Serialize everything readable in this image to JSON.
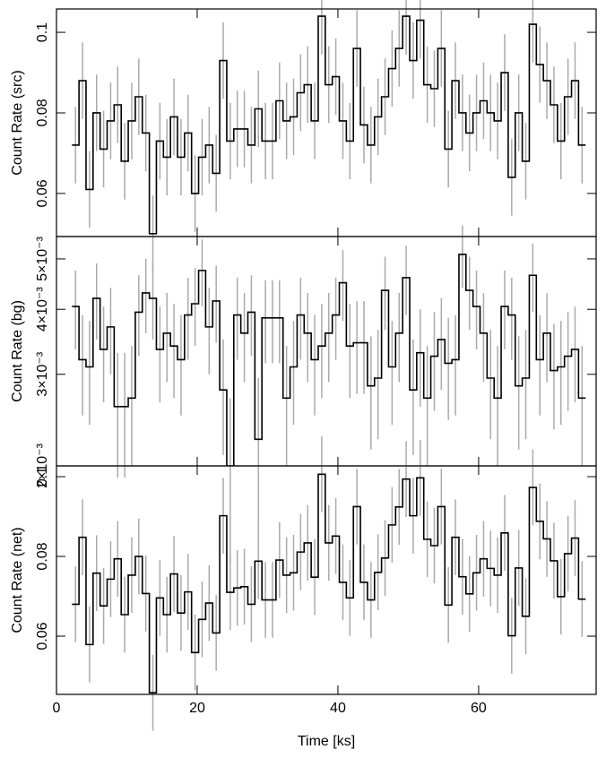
{
  "chart_data": [
    {
      "type": "step",
      "ylabel": "Count Rate (src)",
      "xlim": [
        0,
        76.7
      ],
      "ylim": [
        0.0493,
        0.1058
      ],
      "yticks": [
        0.06,
        0.08,
        0.1
      ],
      "xticks": [
        0,
        20,
        40,
        60
      ],
      "color": "#000000",
      "error_color": "#aaaaaa",
      "x": [
        2.7,
        3.7,
        4.7,
        5.7,
        6.7,
        7.7,
        8.7,
        9.7,
        10.7,
        11.7,
        12.7,
        13.7,
        14.7,
        15.7,
        16.7,
        17.7,
        18.7,
        19.7,
        20.7,
        21.7,
        22.7,
        23.7,
        24.7,
        25.7,
        26.7,
        27.7,
        28.7,
        29.7,
        30.7,
        31.7,
        32.7,
        33.7,
        34.7,
        35.7,
        36.7,
        37.7,
        38.7,
        39.7,
        40.7,
        41.7,
        42.7,
        43.7,
        44.7,
        45.7,
        46.7,
        47.7,
        48.7,
        49.7,
        50.7,
        51.7,
        52.7,
        53.7,
        54.7,
        55.7,
        56.7,
        57.7,
        58.7,
        59.7,
        60.7,
        61.7,
        62.7,
        63.7,
        64.7,
        65.7,
        66.7,
        67.7,
        68.7,
        69.7,
        70.7,
        71.7,
        72.7,
        73.7,
        74.7
      ],
      "values": [
        0.072,
        0.088,
        0.061,
        0.08,
        0.071,
        0.078,
        0.082,
        0.068,
        0.078,
        0.084,
        0.075,
        0.05,
        0.073,
        0.069,
        0.079,
        0.069,
        0.075,
        0.06,
        0.069,
        0.072,
        0.065,
        0.093,
        0.073,
        0.076,
        0.076,
        0.072,
        0.081,
        0.073,
        0.073,
        0.083,
        0.078,
        0.079,
        0.085,
        0.087,
        0.078,
        0.104,
        0.087,
        0.089,
        0.078,
        0.073,
        0.096,
        0.077,
        0.072,
        0.079,
        0.084,
        0.091,
        0.096,
        0.104,
        0.093,
        0.103,
        0.087,
        0.086,
        0.096,
        0.071,
        0.088,
        0.08,
        0.075,
        0.08,
        0.083,
        0.08,
        0.078,
        0.09,
        0.064,
        0.08,
        0.068,
        0.102,
        0.092,
        0.088,
        0.082,
        0.073,
        0.084,
        0.088,
        0.072
      ],
      "errors": [
        0.0095,
        0.0095,
        0.0095,
        0.0095,
        0.0095,
        0.0095,
        0.0095,
        0.0095,
        0.0095,
        0.0095,
        0.0095,
        0.0095,
        0.0095,
        0.0095,
        0.0095,
        0.0095,
        0.0095,
        0.0095,
        0.0095,
        0.0095,
        0.0095,
        0.0095,
        0.0095,
        0.0095,
        0.0095,
        0.0095,
        0.0095,
        0.0095,
        0.0095,
        0.0095,
        0.0095,
        0.0095,
        0.0095,
        0.0095,
        0.0095,
        0.0095,
        0.0095,
        0.0095,
        0.0095,
        0.0095,
        0.0095,
        0.0095,
        0.0095,
        0.0095,
        0.0095,
        0.0095,
        0.0095,
        0.0095,
        0.0095,
        0.0095,
        0.0095,
        0.0095,
        0.0095,
        0.0095,
        0.0095,
        0.0095,
        0.0095,
        0.0095,
        0.0095,
        0.0095,
        0.0095,
        0.0095,
        0.0095,
        0.0095,
        0.0095,
        0.0095,
        0.0095,
        0.0095,
        0.0095,
        0.0095,
        0.0095,
        0.0095,
        0.0095
      ]
    },
    {
      "type": "step",
      "ylabel": "Count Rate (bg)",
      "ylog": true,
      "xlim": [
        0,
        76.7
      ],
      "ylim": [
        0.002,
        0.00552
      ],
      "yticks": [
        {
          "value": 0.002,
          "label": "2×10⁻³"
        },
        {
          "value": 0.003,
          "label": "3×10⁻³"
        },
        {
          "value": 0.004,
          "label": "4×10⁻³"
        },
        {
          "value": 0.005,
          "label": "5×10⁻³"
        }
      ],
      "xticks": [
        0,
        20,
        40,
        60
      ],
      "color": "#000000",
      "error_color": "#aaaaaa",
      "x": [
        2.7,
        3.7,
        4.7,
        5.7,
        6.7,
        7.7,
        8.7,
        9.7,
        10.7,
        11.7,
        12.7,
        13.7,
        14.7,
        15.7,
        16.7,
        17.7,
        18.7,
        19.7,
        20.7,
        21.7,
        22.7,
        23.7,
        24.7,
        25.7,
        26.7,
        27.7,
        28.7,
        29.7,
        30.7,
        31.7,
        32.7,
        33.7,
        34.7,
        35.7,
        36.7,
        37.7,
        38.7,
        39.7,
        40.7,
        41.7,
        42.7,
        43.7,
        44.7,
        45.7,
        46.7,
        47.7,
        48.7,
        49.7,
        50.7,
        51.7,
        52.7,
        53.7,
        54.7,
        55.7,
        56.7,
        57.7,
        58.7,
        59.7,
        60.7,
        61.7,
        62.7,
        63.7,
        64.7,
        65.7,
        66.7,
        67.7,
        68.7,
        69.7,
        70.7,
        71.7,
        72.7,
        73.7,
        74.7
      ],
      "values": [
        0.00405,
        0.0032,
        0.0031,
        0.0042,
        0.00335,
        0.0037,
        0.0026,
        0.0026,
        0.0027,
        0.00395,
        0.0043,
        0.0042,
        0.00335,
        0.0036,
        0.0034,
        0.0032,
        0.0039,
        0.0041,
        0.00475,
        0.0037,
        0.00415,
        0.0028,
        0.002,
        0.0039,
        0.0036,
        0.00395,
        0.00225,
        0.00385,
        0.00385,
        0.00385,
        0.0027,
        0.0031,
        0.0039,
        0.0036,
        0.0032,
        0.0034,
        0.0036,
        0.0039,
        0.0045,
        0.0034,
        0.00345,
        0.00345,
        0.00285,
        0.00295,
        0.00435,
        0.0031,
        0.0036,
        0.0046,
        0.0028,
        0.0033,
        0.0027,
        0.00325,
        0.0035,
        0.00315,
        0.0032,
        0.0051,
        0.00435,
        0.00405,
        0.0036,
        0.00295,
        0.0027,
        0.00405,
        0.0039,
        0.00285,
        0.00295,
        0.00465,
        0.0032,
        0.0036,
        0.00305,
        0.0031,
        0.00325,
        0.00335,
        0.0027
      ],
      "errors": [
        0.0007,
        0.0007,
        0.0007,
        0.0007,
        0.0007,
        0.0007,
        0.0007,
        0.0007,
        0.0007,
        0.0007,
        0.0007,
        0.0007,
        0.0007,
        0.0007,
        0.0007,
        0.0007,
        0.0007,
        0.0007,
        0.0007,
        0.0007,
        0.0007,
        0.0007,
        0.0007,
        0.0007,
        0.0007,
        0.0007,
        0.0007,
        0.0007,
        0.0007,
        0.0007,
        0.0007,
        0.0007,
        0.0007,
        0.0007,
        0.0007,
        0.0007,
        0.0007,
        0.0007,
        0.0007,
        0.0007,
        0.0007,
        0.0007,
        0.0007,
        0.0007,
        0.0007,
        0.0007,
        0.0007,
        0.0007,
        0.0007,
        0.0007,
        0.0007,
        0.0007,
        0.0007,
        0.0007,
        0.0007,
        0.0007,
        0.0007,
        0.0007,
        0.0007,
        0.0007,
        0.0007,
        0.0007,
        0.0007,
        0.0007,
        0.0007,
        0.0007,
        0.0007,
        0.0007,
        0.0007,
        0.0007,
        0.0007,
        0.0007,
        0.0007
      ]
    },
    {
      "type": "step",
      "ylabel": "Count Rate (net)",
      "xlabel": "Time [ks]",
      "xlim": [
        0,
        76.7
      ],
      "ylim": [
        0.0454,
        0.1027
      ],
      "yticks": [
        0.06,
        0.08,
        0.1
      ],
      "xticks": [
        0,
        20,
        40,
        60
      ],
      "color": "#000000",
      "error_color": "#aaaaaa",
      "x": [
        2.7,
        3.7,
        4.7,
        5.7,
        6.7,
        7.7,
        8.7,
        9.7,
        10.7,
        11.7,
        12.7,
        13.7,
        14.7,
        15.7,
        16.7,
        17.7,
        18.7,
        19.7,
        20.7,
        21.7,
        22.7,
        23.7,
        24.7,
        25.7,
        26.7,
        27.7,
        28.7,
        29.7,
        30.7,
        31.7,
        32.7,
        33.7,
        34.7,
        35.7,
        36.7,
        37.7,
        38.7,
        39.7,
        40.7,
        41.7,
        42.7,
        43.7,
        44.7,
        45.7,
        46.7,
        47.7,
        48.7,
        49.7,
        50.7,
        51.7,
        52.7,
        53.7,
        54.7,
        55.7,
        56.7,
        57.7,
        58.7,
        59.7,
        60.7,
        61.7,
        62.7,
        63.7,
        64.7,
        65.7,
        66.7,
        67.7,
        68.7,
        69.7,
        70.7,
        71.7,
        72.7,
        73.7,
        74.7
      ],
      "values": [
        0.068,
        0.0848,
        0.0579,
        0.0758,
        0.0676,
        0.0743,
        0.0794,
        0.0654,
        0.0753,
        0.08,
        0.0707,
        0.0458,
        0.0696,
        0.0654,
        0.0756,
        0.0658,
        0.0711,
        0.0559,
        0.0642,
        0.0683,
        0.0608,
        0.0902,
        0.071,
        0.0721,
        0.0724,
        0.068,
        0.0788,
        0.0691,
        0.0691,
        0.0791,
        0.0753,
        0.0759,
        0.0811,
        0.0834,
        0.0748,
        0.1006,
        0.0834,
        0.0851,
        0.0735,
        0.0696,
        0.0925,
        0.0735,
        0.0691,
        0.076,
        0.0796,
        0.0879,
        0.0924,
        0.0994,
        0.0902,
        0.0997,
        0.0843,
        0.0827,
        0.0925,
        0.0678,
        0.0848,
        0.0749,
        0.0706,
        0.0759,
        0.0794,
        0.077,
        0.0753,
        0.0859,
        0.0601,
        0.0771,
        0.065,
        0.0973,
        0.0888,
        0.0844,
        0.0789,
        0.0699,
        0.0807,
        0.0846,
        0.0693
      ],
      "errors": [
        0.0095,
        0.0095,
        0.0095,
        0.0095,
        0.0095,
        0.0095,
        0.0095,
        0.0095,
        0.0095,
        0.0095,
        0.0095,
        0.0095,
        0.0095,
        0.0095,
        0.0095,
        0.0095,
        0.0095,
        0.0095,
        0.0095,
        0.0095,
        0.0095,
        0.0095,
        0.0095,
        0.0095,
        0.0095,
        0.0095,
        0.0095,
        0.0095,
        0.0095,
        0.0095,
        0.0095,
        0.0095,
        0.0095,
        0.0095,
        0.0095,
        0.0095,
        0.0095,
        0.0095,
        0.0095,
        0.0095,
        0.0095,
        0.0095,
        0.0095,
        0.0095,
        0.0095,
        0.0095,
        0.0095,
        0.0095,
        0.0095,
        0.0095,
        0.0095,
        0.0095,
        0.0095,
        0.0095,
        0.0095,
        0.0095,
        0.0095,
        0.0095,
        0.0095,
        0.0095,
        0.0095,
        0.0095,
        0.0095,
        0.0095,
        0.0095,
        0.0095,
        0.0095,
        0.0095,
        0.0095,
        0.0095,
        0.0095,
        0.0095,
        0.0095
      ]
    }
  ]
}
